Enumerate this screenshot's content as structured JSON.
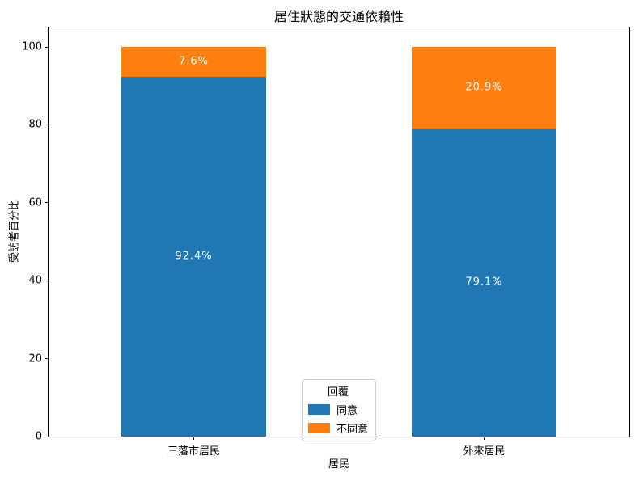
{
  "chart_data": {
    "type": "bar",
    "stacked": true,
    "title": "居住狀態的交通依賴性",
    "xlabel": "居民",
    "ylabel": "受訪者百分比",
    "categories": [
      "三藩市居民",
      "外來居民"
    ],
    "series": [
      {
        "name": "同意",
        "color": "#1f77b4",
        "values": [
          92.4,
          79.1
        ]
      },
      {
        "name": "不同意",
        "color": "#ff7f0e",
        "values": [
          7.6,
          20.9
        ]
      }
    ],
    "bar_labels": [
      [
        "92.4%",
        "7.6%"
      ],
      [
        "79.1%",
        "20.9%"
      ]
    ],
    "yticks": [
      0,
      20,
      40,
      60,
      80,
      100
    ],
    "ylim": [
      0,
      105
    ],
    "bar_width_fraction": 0.5,
    "grid": false,
    "text_color": "#000000",
    "bar_label_color": "#ffffff",
    "legend": {
      "title": "回覆",
      "entries": [
        "同意",
        "不同意"
      ],
      "position": "lower-center"
    }
  }
}
